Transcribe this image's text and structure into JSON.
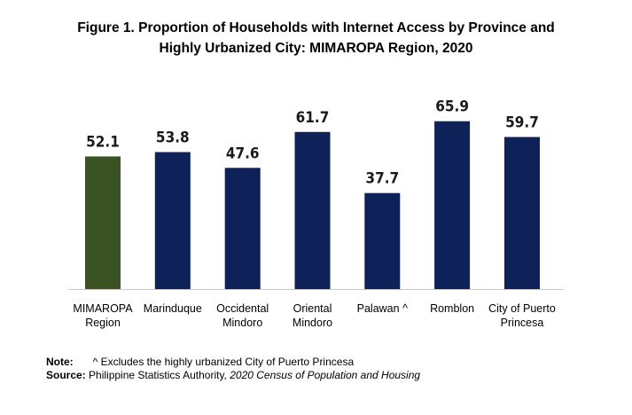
{
  "title_lines": [
    "Figure 1. Proportion of Households with Internet Access by Province and",
    "Highly Urbanized City: MIMAROPA Region, 2020"
  ],
  "chart_data": {
    "type": "bar",
    "categories": [
      [
        "MIMAROPA",
        "Region"
      ],
      [
        "Marinduque"
      ],
      [
        "Occidental",
        "Mindoro"
      ],
      [
        "Oriental",
        "Mindoro"
      ],
      [
        "Palawan ^"
      ],
      [
        "Romblon"
      ],
      [
        "City of Puerto",
        "Princesa"
      ]
    ],
    "values": [
      52.1,
      53.8,
      47.6,
      61.7,
      37.7,
      65.9,
      59.7
    ],
    "value_labels": [
      "52.1",
      "53.8",
      "47.6",
      "61.7",
      "37.7",
      "65.9",
      "59.7"
    ],
    "bar_colors": [
      "#3b5323",
      "#0e2158",
      "#0e2158",
      "#0e2158",
      "#0e2158",
      "#0e2158",
      "#0e2158"
    ],
    "ylim": [
      0,
      100
    ],
    "grid": false,
    "legend": "none"
  },
  "notes": {
    "note_label": "Note:",
    "note_text": "^ Excludes the highly urbanized City of Puerto Princesa",
    "source_label": "Source:",
    "source_text": "Philippine Statistics Authority,",
    "source_title": "2020 Census of Population and Housing"
  }
}
